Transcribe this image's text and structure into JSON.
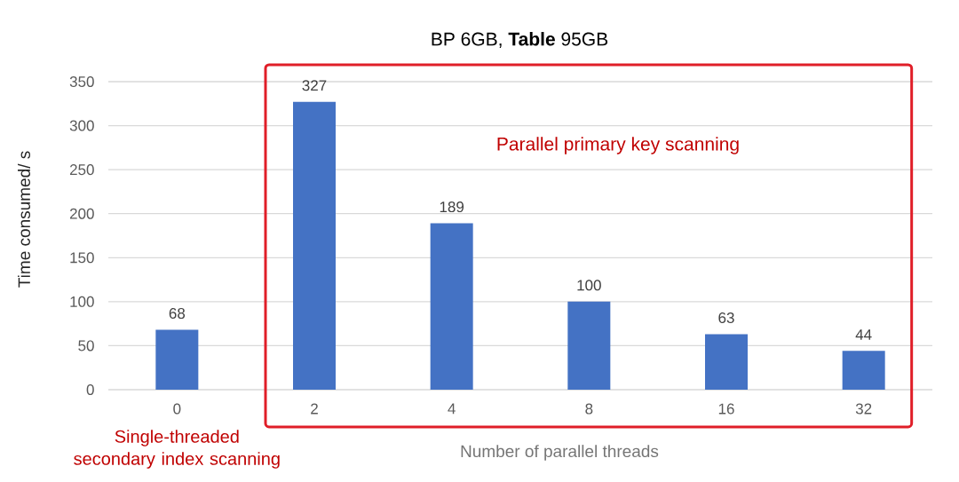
{
  "chart_data": {
    "type": "bar",
    "title": "BP 6GB, **Table** 95GB",
    "xlabel": "Number of parallel threads",
    "ylabel": "Time consumed/ s",
    "categories": [
      "0",
      "2",
      "4",
      "8",
      "16",
      "32"
    ],
    "values": [
      68,
      327,
      189,
      100,
      63,
      44
    ],
    "color": "#4472c4",
    "ylim": [
      0,
      350
    ],
    "yticks": [
      0,
      50,
      100,
      150,
      200,
      250,
      300,
      350
    ],
    "grid": "y",
    "data_labels": true,
    "annotations": [
      "Parallel primary key scanning",
      "Single-threaded secondary index scanning"
    ]
  }
}
